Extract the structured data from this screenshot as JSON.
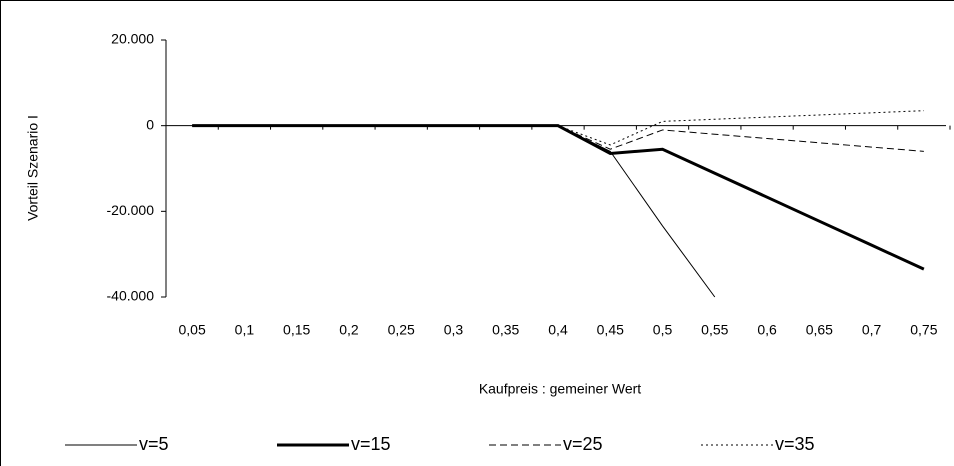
{
  "chart_data": {
    "type": "line",
    "y_label": "Vorteil Szenario I",
    "x_label": "Kaufpreis : gemeiner Wert",
    "categories": [
      "0,05",
      "0,1",
      "0,15",
      "0,2",
      "0,25",
      "0,3",
      "0,35",
      "0,4",
      "0,45",
      "0,5",
      "0,55",
      "0,6",
      "0,65",
      "0,7",
      "0,75"
    ],
    "series": [
      {
        "name": "v=5",
        "color": "#000000",
        "style": "solid",
        "line_width": 1,
        "values": [
          0,
          0,
          0,
          0,
          0,
          0,
          0,
          0,
          -6000,
          -23400,
          -40000,
          null,
          null,
          null,
          null
        ]
      },
      {
        "name": "v=15",
        "color": "#000000",
        "style": "solid",
        "line_width": 3,
        "values": [
          0,
          0,
          0,
          0,
          0,
          0,
          0,
          0,
          -6500,
          -5500,
          -11100,
          -16700,
          -22300,
          -27900,
          -33500
        ]
      },
      {
        "name": "v=25",
        "color": "#000000",
        "style": "dashed",
        "line_width": 1,
        "values": [
          0,
          0,
          0,
          0,
          0,
          0,
          0,
          0,
          -5500,
          -1000,
          -2000,
          -3000,
          -4000,
          -5000,
          -6000
        ]
      },
      {
        "name": "v=35",
        "color": "#000000",
        "style": "dotted",
        "line_width": 1,
        "values": [
          0,
          0,
          0,
          0,
          0,
          0,
          0,
          0,
          -4500,
          1000,
          1500,
          2000,
          2500,
          3000,
          3500
        ]
      }
    ],
    "ylim": [
      -40000,
      20000
    ],
    "yticks": [
      {
        "value": -40000,
        "label": "-40.000"
      },
      {
        "value": -20000,
        "label": "-20.000"
      },
      0,
      {
        "value": 20000,
        "label": "20.000"
      }
    ],
    "legend": "bottom"
  }
}
